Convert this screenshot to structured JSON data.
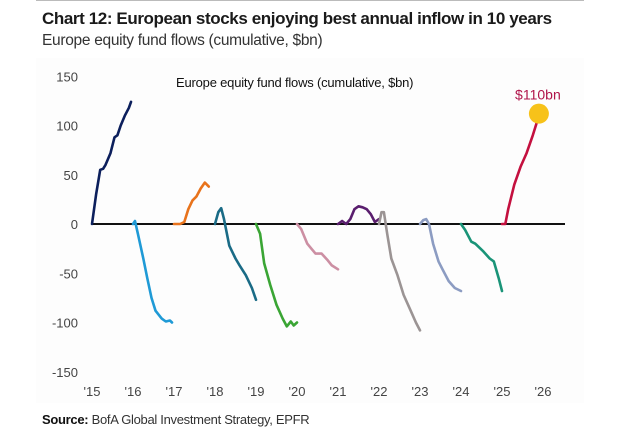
{
  "header": {
    "title": "Chart 12: European stocks enjoying best annual inflow in 10 years",
    "subtitle": "Europe equity fund flows (cumulative, $bn)"
  },
  "footer": {
    "source_label": "Source:",
    "source_text": " BofA Global Investment Strategy, EPFR"
  },
  "chart_data": {
    "type": "line",
    "title": "Europe equity fund flows (cumulative, $bn)",
    "xlabel": "",
    "ylabel": "",
    "ylim": [
      -150,
      150
    ],
    "xlim": [
      2015,
      2026
    ],
    "yticks": [
      150,
      100,
      50,
      0,
      -50,
      -100,
      -150
    ],
    "xticks": [
      {
        "v": 2015,
        "label": "'15"
      },
      {
        "v": 2016,
        "label": "'16"
      },
      {
        "v": 2017,
        "label": "'17"
      },
      {
        "v": 2018,
        "label": "'18"
      },
      {
        "v": 2019,
        "label": "'19"
      },
      {
        "v": 2020,
        "label": "'20"
      },
      {
        "v": 2021,
        "label": "'21"
      },
      {
        "v": 2022,
        "label": "'22"
      },
      {
        "v": 2023,
        "label": "'23"
      },
      {
        "v": 2024,
        "label": "'24"
      },
      {
        "v": 2025,
        "label": "'25"
      },
      {
        "v": 2026,
        "label": "'26"
      }
    ],
    "grid": false,
    "legend": "none",
    "series": [
      {
        "name": "2015",
        "color": "#0c1f5c",
        "points": [
          [
            2015.0,
            0
          ],
          [
            2015.1,
            30
          ],
          [
            2015.2,
            55
          ],
          [
            2015.27,
            56
          ],
          [
            2015.33,
            60
          ],
          [
            2015.45,
            72
          ],
          [
            2015.55,
            88
          ],
          [
            2015.62,
            90
          ],
          [
            2015.7,
            100
          ],
          [
            2015.8,
            110
          ],
          [
            2015.9,
            118
          ],
          [
            2015.95,
            124
          ]
        ]
      },
      {
        "name": "2016",
        "color": "#1f9ad6",
        "points": [
          [
            2016.0,
            0
          ],
          [
            2016.05,
            3
          ],
          [
            2016.12,
            -10
          ],
          [
            2016.25,
            -35
          ],
          [
            2016.35,
            -55
          ],
          [
            2016.45,
            -75
          ],
          [
            2016.55,
            -88
          ],
          [
            2016.7,
            -96
          ],
          [
            2016.8,
            -99
          ],
          [
            2016.9,
            -98
          ],
          [
            2016.95,
            -100
          ]
        ]
      },
      {
        "name": "2017",
        "color": "#e8731c",
        "points": [
          [
            2017.0,
            0
          ],
          [
            2017.15,
            0
          ],
          [
            2017.25,
            2
          ],
          [
            2017.35,
            15
          ],
          [
            2017.45,
            24
          ],
          [
            2017.55,
            28
          ],
          [
            2017.65,
            36
          ],
          [
            2017.75,
            42
          ],
          [
            2017.85,
            38
          ]
        ]
      },
      {
        "name": "2018",
        "color": "#1a6b86",
        "points": [
          [
            2018.0,
            0
          ],
          [
            2018.08,
            12
          ],
          [
            2018.15,
            16
          ],
          [
            2018.22,
            5
          ],
          [
            2018.35,
            -22
          ],
          [
            2018.5,
            -35
          ],
          [
            2018.6,
            -42
          ],
          [
            2018.75,
            -52
          ],
          [
            2018.9,
            -65
          ],
          [
            2019.0,
            -77
          ]
        ]
      },
      {
        "name": "2019",
        "color": "#3aa534",
        "points": [
          [
            2019.0,
            0
          ],
          [
            2019.1,
            -10
          ],
          [
            2019.2,
            -40
          ],
          [
            2019.35,
            -62
          ],
          [
            2019.5,
            -82
          ],
          [
            2019.65,
            -96
          ],
          [
            2019.75,
            -104
          ],
          [
            2019.85,
            -99
          ],
          [
            2019.92,
            -103
          ],
          [
            2020.0,
            -100
          ]
        ]
      },
      {
        "name": "2020",
        "color": "#cc8fa3",
        "points": [
          [
            2020.0,
            0
          ],
          [
            2020.1,
            -5
          ],
          [
            2020.25,
            -20
          ],
          [
            2020.35,
            -25
          ],
          [
            2020.45,
            -30
          ],
          [
            2020.6,
            -30
          ],
          [
            2020.75,
            -37
          ],
          [
            2020.85,
            -42
          ],
          [
            2021.0,
            -46
          ]
        ]
      },
      {
        "name": "2021",
        "color": "#5a1e6e",
        "points": [
          [
            2021.0,
            0
          ],
          [
            2021.1,
            3
          ],
          [
            2021.2,
            0
          ],
          [
            2021.3,
            5
          ],
          [
            2021.4,
            15
          ],
          [
            2021.5,
            18
          ],
          [
            2021.6,
            17
          ],
          [
            2021.7,
            15
          ],
          [
            2021.8,
            10
          ],
          [
            2021.9,
            2
          ],
          [
            2022.0,
            5
          ]
        ]
      },
      {
        "name": "2022",
        "color": "#9b9494",
        "points": [
          [
            2022.0,
            0
          ],
          [
            2022.06,
            12
          ],
          [
            2022.12,
            12
          ],
          [
            2022.2,
            -10
          ],
          [
            2022.3,
            -35
          ],
          [
            2022.45,
            -52
          ],
          [
            2022.6,
            -72
          ],
          [
            2022.75,
            -86
          ],
          [
            2022.9,
            -100
          ],
          [
            2023.0,
            -108
          ]
        ]
      },
      {
        "name": "2023",
        "color": "#8c9cc2",
        "points": [
          [
            2023.0,
            0
          ],
          [
            2023.08,
            4
          ],
          [
            2023.15,
            5
          ],
          [
            2023.22,
            0
          ],
          [
            2023.32,
            -20
          ],
          [
            2023.45,
            -38
          ],
          [
            2023.55,
            -46
          ],
          [
            2023.7,
            -58
          ],
          [
            2023.85,
            -65
          ],
          [
            2024.0,
            -68
          ]
        ]
      },
      {
        "name": "2024",
        "color": "#1a9478",
        "points": [
          [
            2024.0,
            0
          ],
          [
            2024.1,
            -6
          ],
          [
            2024.25,
            -18
          ],
          [
            2024.35,
            -20
          ],
          [
            2024.55,
            -28
          ],
          [
            2024.7,
            -35
          ],
          [
            2024.8,
            -38
          ],
          [
            2024.92,
            -55
          ],
          [
            2025.0,
            -68
          ]
        ]
      },
      {
        "name": "2025",
        "color": "#c4103f",
        "points": [
          [
            2025.0,
            0
          ],
          [
            2025.08,
            0
          ],
          [
            2025.15,
            15
          ],
          [
            2025.3,
            40
          ],
          [
            2025.45,
            58
          ],
          [
            2025.6,
            72
          ],
          [
            2025.75,
            90
          ],
          [
            2025.9,
            110
          ]
        ]
      }
    ],
    "annotations": [
      {
        "text": "$110bn",
        "x": 2025.9,
        "y": 110,
        "marker_color": "#f7c21a",
        "text_color": "#b0144a"
      }
    ]
  }
}
